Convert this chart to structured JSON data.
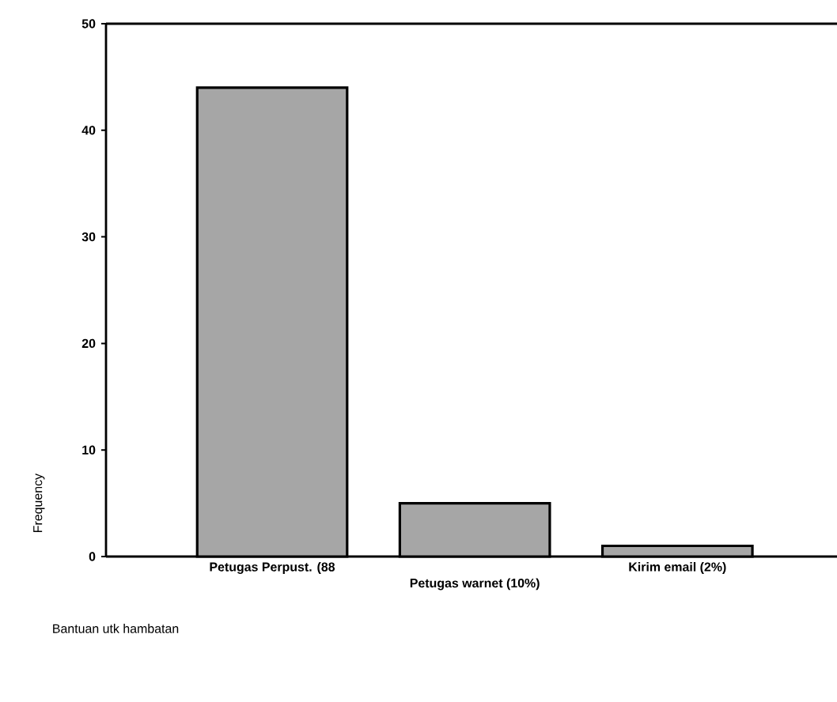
{
  "chart_data": {
    "type": "bar",
    "categories": [
      "Petugas Perpust. (88",
      "Petugas warnet (10%)",
      "Kirim email (2%)"
    ],
    "values": [
      44,
      5,
      1
    ],
    "color": "#a6a6a6",
    "xlabel": "Bantuan utk hambatan",
    "ylabel": "Frequency",
    "ylim": [
      0,
      50
    ],
    "yticks": [
      0,
      10,
      20,
      30,
      40,
      50
    ]
  }
}
